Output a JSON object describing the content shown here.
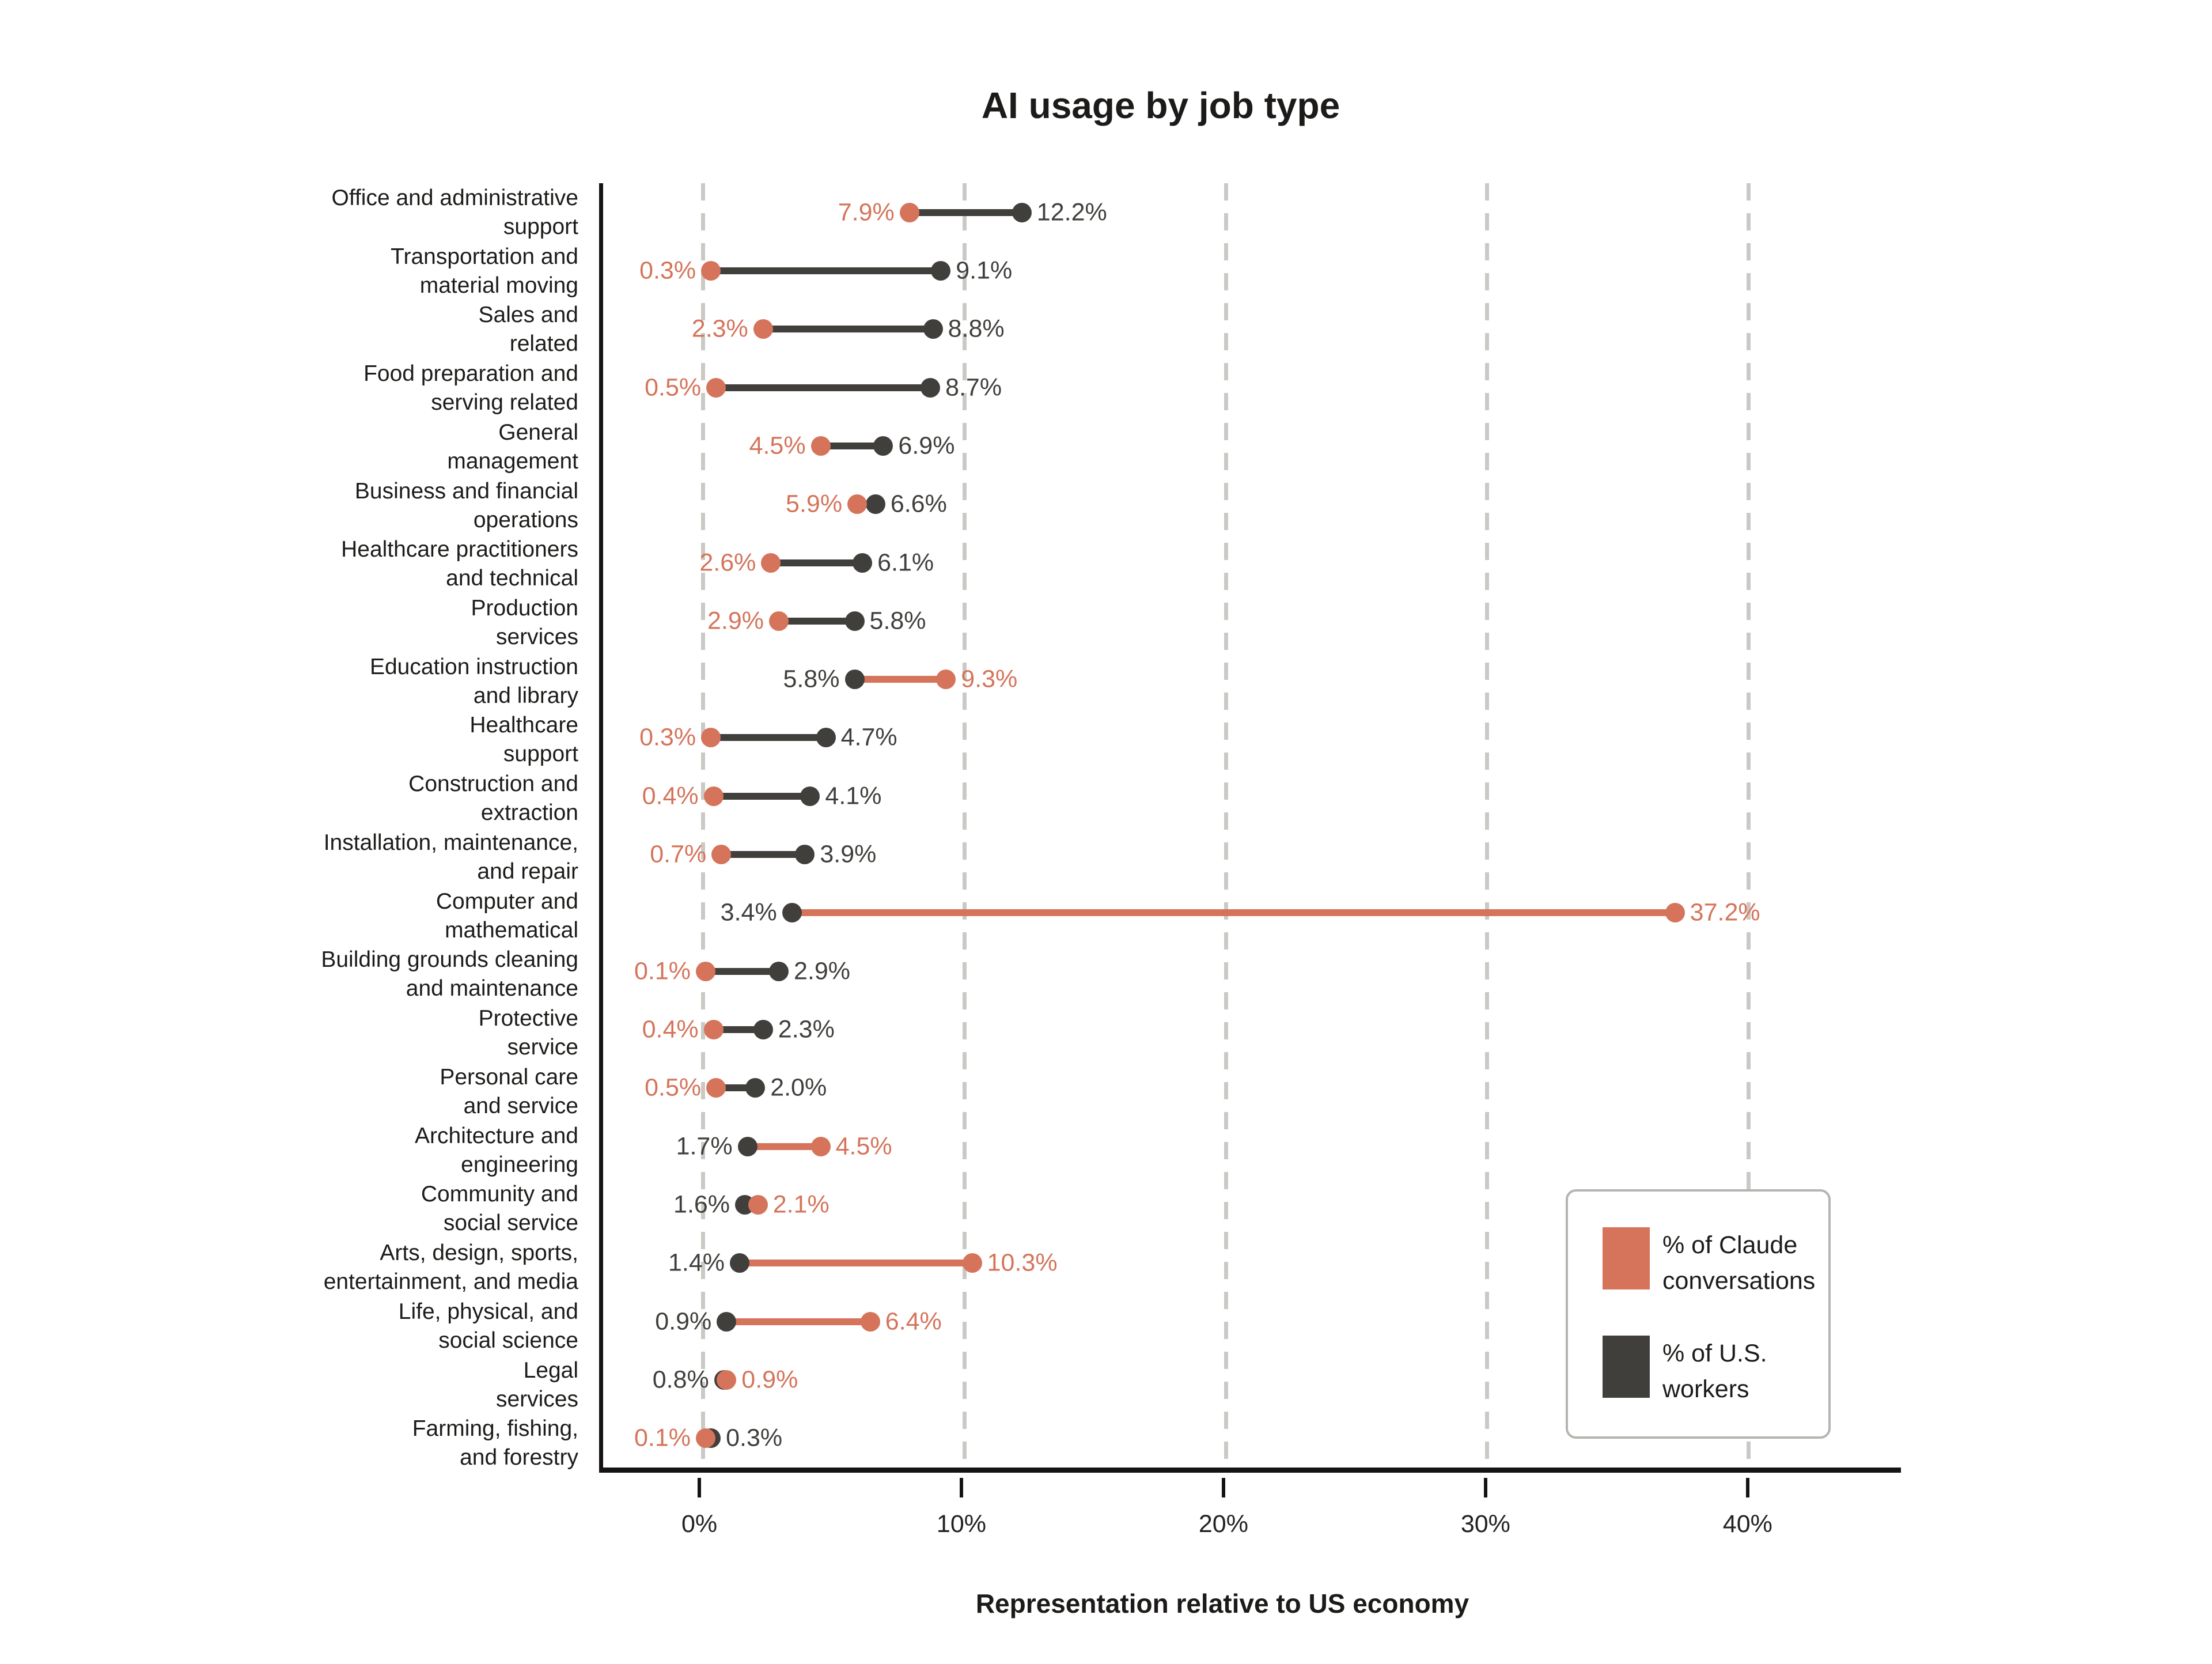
{
  "chart_data": {
    "type": "dumbbell",
    "title": "AI usage by job type",
    "xlabel": "Representation relative to US economy",
    "x_tick_values": [
      0,
      10,
      20,
      30,
      40
    ],
    "x_tick_labels": [
      "0%",
      "10%",
      "20%",
      "30%",
      "40%"
    ],
    "xlim": [
      -3.825,
      45.85
    ],
    "grid": "vertical-dashed",
    "grid_color": "#CBC9C5",
    "axis_color": "#161412",
    "background_color": "#FFFFFF",
    "legend_position": "inside-lower-right",
    "value_suffix": "%",
    "value_decimals": 1,
    "categories": [
      "Office and administrative\nsupport",
      "Transportation and\nmaterial moving",
      "Sales and\nrelated",
      "Food preparation and\nserving related",
      "General\nmanagement",
      "Business and financial\noperations",
      "Healthcare practitioners\nand technical",
      "Production\nservices",
      "Education instruction\nand library",
      "Healthcare\nsupport",
      "Construction and\nextraction",
      "Installation, maintenance,\nand repair",
      "Computer and\nmathematical",
      "Building grounds cleaning\nand maintenance",
      "Protective\nservice",
      "Personal care\nand service",
      "Architecture and\nengineering",
      "Community and\nsocial service",
      "Arts, design, sports,\nentertainment, and media",
      "Life, physical, and\nsocial science",
      "Legal\nservices",
      "Farming, fishing,\nand forestry"
    ],
    "series": [
      {
        "name": "% of Claude conversations",
        "key": "claude",
        "color": "#D5745A",
        "values": [
          7.9,
          0.3,
          2.3,
          0.5,
          4.5,
          5.9,
          2.6,
          2.9,
          9.3,
          0.3,
          0.4,
          0.7,
          37.2,
          0.1,
          0.4,
          0.5,
          4.5,
          2.1,
          10.3,
          6.4,
          0.9,
          0.1
        ]
      },
      {
        "name": "% of U.S. workers",
        "key": "workers",
        "color": "#413F3C",
        "values": [
          12.2,
          9.1,
          8.8,
          8.7,
          6.9,
          6.6,
          6.1,
          5.8,
          5.8,
          4.7,
          4.1,
          3.9,
          3.4,
          2.9,
          2.3,
          2.0,
          1.7,
          1.6,
          1.4,
          0.9,
          0.8,
          0.3
        ]
      }
    ]
  }
}
